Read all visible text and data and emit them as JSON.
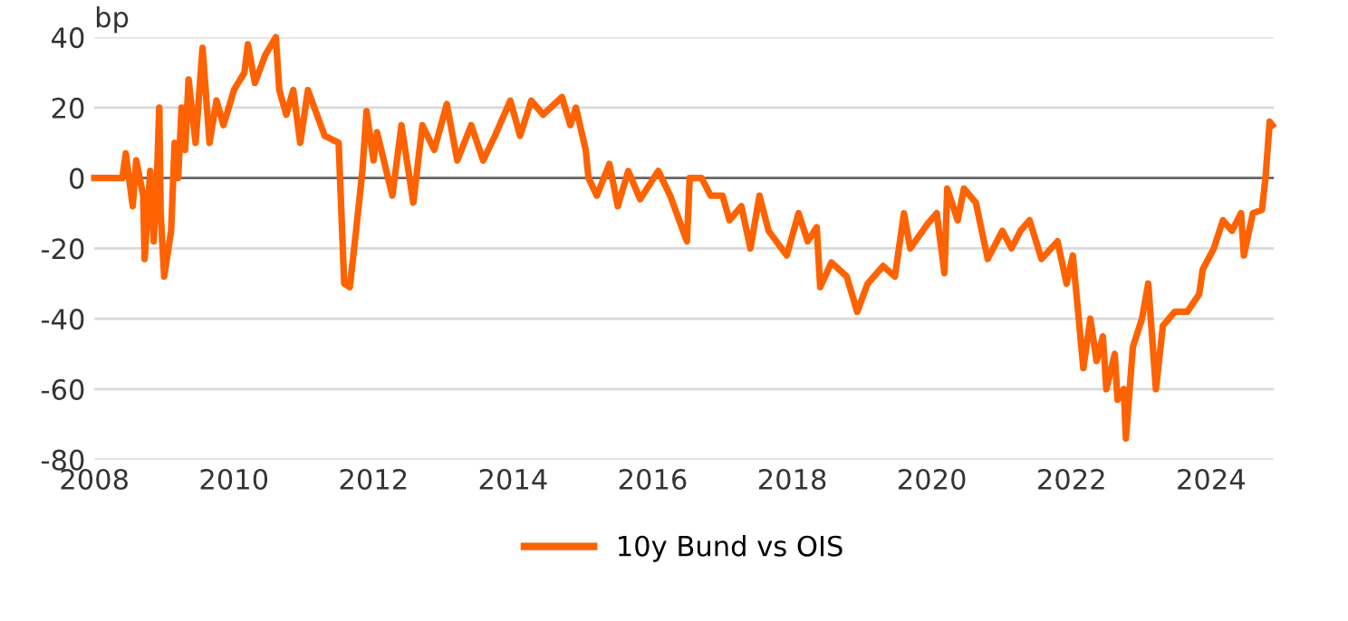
{
  "chart_data": {
    "type": "line",
    "ylabel": "bp",
    "legend": "bottom",
    "grid": "y",
    "line_style": "solid",
    "marker": "none",
    "xlim": [
      2008,
      2024.9
    ],
    "xticks": [
      2008,
      2010,
      2012,
      2014,
      2016,
      2018,
      2020,
      2022,
      2024
    ],
    "ylim": [
      -80,
      40
    ],
    "yticks": [
      -80,
      -60,
      -40,
      -20,
      0,
      20,
      40
    ],
    "ref_lines": [
      {
        "axis": "y",
        "value": 0,
        "color": "#666666"
      }
    ],
    "series": [
      {
        "name": "10y Bund vs OIS",
        "color": "#ff6200",
        "x": [
          2008.0,
          2008.4,
          2008.45,
          2008.55,
          2008.6,
          2008.7,
          2008.72,
          2008.8,
          2008.85,
          2008.9,
          2008.93,
          2008.95,
          2009.0,
          2009.1,
          2009.15,
          2009.2,
          2009.25,
          2009.3,
          2009.35,
          2009.45,
          2009.55,
          2009.65,
          2009.75,
          2009.85,
          2010.0,
          2010.15,
          2010.2,
          2010.3,
          2010.45,
          2010.6,
          2010.65,
          2010.75,
          2010.85,
          2010.95,
          2011.06,
          2011.3,
          2011.5,
          2011.58,
          2011.66,
          2011.75,
          2011.84,
          2011.9,
          2012.0,
          2012.05,
          2012.27,
          2012.4,
          2012.57,
          2012.7,
          2012.87,
          2013.05,
          2013.2,
          2013.4,
          2013.57,
          2013.74,
          2013.96,
          2014.1,
          2014.26,
          2014.43,
          2014.7,
          2014.82,
          2014.9,
          2015.04,
          2015.08,
          2015.2,
          2015.38,
          2015.5,
          2015.65,
          2015.82,
          2016.08,
          2016.25,
          2016.49,
          2016.53,
          2016.7,
          2016.83,
          2017.0,
          2017.1,
          2017.27,
          2017.4,
          2017.53,
          2017.66,
          2017.92,
          2018.09,
          2018.22,
          2018.35,
          2018.4,
          2018.56,
          2018.78,
          2018.93,
          2019.08,
          2019.3,
          2019.47,
          2019.6,
          2019.69,
          2019.94,
          2020.07,
          2020.18,
          2020.22,
          2020.37,
          2020.46,
          2020.63,
          2020.8,
          2021.01,
          2021.14,
          2021.27,
          2021.4,
          2021.57,
          2021.8,
          2021.93,
          2022.02,
          2022.17,
          2022.27,
          2022.36,
          2022.45,
          2022.5,
          2022.62,
          2022.66,
          2022.75,
          2022.78,
          2022.88,
          2023.01,
          2023.1,
          2023.21,
          2023.31,
          2023.48,
          2023.66,
          2023.83,
          2023.88,
          2024.04,
          2024.17,
          2024.3,
          2024.43,
          2024.47,
          2024.6,
          2024.73,
          2024.78,
          2024.84,
          2024.88
        ],
        "values": [
          0,
          0,
          7,
          -8,
          5,
          -5,
          -23,
          2,
          -18,
          2,
          20,
          -10,
          -28,
          -15,
          10,
          0,
          20,
          8,
          28,
          10,
          37,
          10,
          22,
          15,
          25,
          30,
          38,
          27,
          35,
          40,
          25,
          18,
          25,
          10,
          25,
          12,
          10,
          -30,
          -31,
          -15,
          2,
          19,
          5,
          13,
          -5,
          15,
          -7,
          15,
          8,
          21,
          5,
          15,
          5,
          12,
          22,
          12,
          22,
          18,
          23,
          15,
          20,
          8,
          0,
          -5,
          4,
          -8,
          2,
          -6,
          2,
          -5,
          -18,
          0,
          0,
          -5,
          -5,
          -12,
          -8,
          -20,
          -5,
          -15,
          -22,
          -10,
          -18,
          -14,
          -31,
          -24,
          -28,
          -38,
          -30,
          -25,
          -28,
          -10,
          -20,
          -13,
          -10,
          -27,
          -3,
          -12,
          -3,
          -7,
          -23,
          -15,
          -20,
          -15,
          -12,
          -23,
          -18,
          -30,
          -22,
          -54,
          -40,
          -52,
          -45,
          -60,
          -50,
          -63,
          -60,
          -74,
          -48,
          -40,
          -30,
          -60,
          -42,
          -38,
          -38,
          -33,
          -26,
          -20,
          -12,
          -15,
          -10,
          -22,
          -10,
          -9,
          0,
          16,
          15
        ]
      }
    ]
  }
}
